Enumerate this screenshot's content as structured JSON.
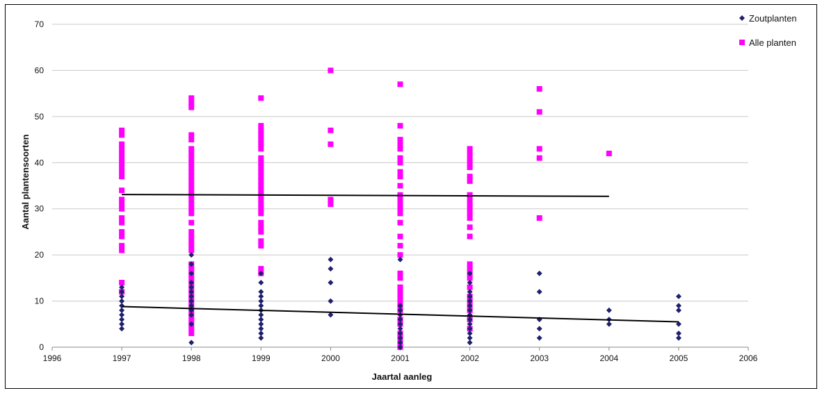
{
  "chart_data": {
    "type": "scatter",
    "xlabel": "Jaartal aanleg",
    "ylabel": "Aantal plantensoorten",
    "xlim": [
      1996,
      2006
    ],
    "ylim": [
      0,
      70
    ],
    "xticks": [
      1996,
      1997,
      1998,
      1999,
      2000,
      2001,
      2002,
      2003,
      2004,
      2005,
      2006
    ],
    "yticks": [
      0,
      10,
      20,
      30,
      40,
      50,
      60,
      70
    ],
    "grid": "horizontal",
    "legend_position": "top-right",
    "series": [
      {
        "name": "Zoutplanten",
        "color": "#1f1f6e",
        "marker": "diamond",
        "points": [
          [
            1997,
            4
          ],
          [
            1997,
            5
          ],
          [
            1997,
            6
          ],
          [
            1997,
            7
          ],
          [
            1997,
            8
          ],
          [
            1997,
            9
          ],
          [
            1997,
            10
          ],
          [
            1997,
            11
          ],
          [
            1997,
            12
          ],
          [
            1997,
            13
          ],
          [
            1998,
            1
          ],
          [
            1998,
            5
          ],
          [
            1998,
            7
          ],
          [
            1998,
            8
          ],
          [
            1998,
            9
          ],
          [
            1998,
            10
          ],
          [
            1998,
            11
          ],
          [
            1998,
            12
          ],
          [
            1998,
            13
          ],
          [
            1998,
            14
          ],
          [
            1998,
            16
          ],
          [
            1998,
            18
          ],
          [
            1998,
            20
          ],
          [
            1999,
            2
          ],
          [
            1999,
            3
          ],
          [
            1999,
            4
          ],
          [
            1999,
            5
          ],
          [
            1999,
            6
          ],
          [
            1999,
            7
          ],
          [
            1999,
            8
          ],
          [
            1999,
            9
          ],
          [
            1999,
            10
          ],
          [
            1999,
            11
          ],
          [
            1999,
            12
          ],
          [
            1999,
            14
          ],
          [
            1999,
            16
          ],
          [
            2000,
            7
          ],
          [
            2000,
            10
          ],
          [
            2000,
            14
          ],
          [
            2000,
            17
          ],
          [
            2000,
            19
          ],
          [
            2001,
            0
          ],
          [
            2001,
            1
          ],
          [
            2001,
            2
          ],
          [
            2001,
            3
          ],
          [
            2001,
            4
          ],
          [
            2001,
            5
          ],
          [
            2001,
            6
          ],
          [
            2001,
            7
          ],
          [
            2001,
            8
          ],
          [
            2001,
            9
          ],
          [
            2001,
            19
          ],
          [
            2002,
            1
          ],
          [
            2002,
            2
          ],
          [
            2002,
            3
          ],
          [
            2002,
            4
          ],
          [
            2002,
            5
          ],
          [
            2002,
            6
          ],
          [
            2002,
            7
          ],
          [
            2002,
            8
          ],
          [
            2002,
            9
          ],
          [
            2002,
            10
          ],
          [
            2002,
            11
          ],
          [
            2002,
            12
          ],
          [
            2002,
            14
          ],
          [
            2002,
            16
          ],
          [
            2003,
            2
          ],
          [
            2003,
            4
          ],
          [
            2003,
            6
          ],
          [
            2003,
            12
          ],
          [
            2003,
            16
          ],
          [
            2004,
            5
          ],
          [
            2004,
            6
          ],
          [
            2004,
            8
          ],
          [
            2005,
            2
          ],
          [
            2005,
            3
          ],
          [
            2005,
            5
          ],
          [
            2005,
            8
          ],
          [
            2005,
            9
          ],
          [
            2005,
            11
          ]
        ],
        "trendline": [
          [
            1997,
            8.8
          ],
          [
            2005,
            5.5
          ]
        ]
      },
      {
        "name": "Alle planten",
        "color": "#ff00ff",
        "marker": "square",
        "points": [
          [
            1997,
            12
          ],
          [
            1997,
            14
          ],
          [
            1997,
            21
          ],
          [
            1997,
            22
          ],
          [
            1997,
            24
          ],
          [
            1997,
            25
          ],
          [
            1997,
            27
          ],
          [
            1997,
            28
          ],
          [
            1997,
            30
          ],
          [
            1997,
            31
          ],
          [
            1997,
            32
          ],
          [
            1997,
            34
          ],
          [
            1997,
            37
          ],
          [
            1997,
            38
          ],
          [
            1997,
            39
          ],
          [
            1997,
            40
          ],
          [
            1997,
            41
          ],
          [
            1997,
            42
          ],
          [
            1997,
            43
          ],
          [
            1997,
            44
          ],
          [
            1997,
            46
          ],
          [
            1997,
            47
          ],
          [
            1998,
            3
          ],
          [
            1998,
            4
          ],
          [
            1998,
            5
          ],
          [
            1998,
            6
          ],
          [
            1998,
            7
          ],
          [
            1998,
            8
          ],
          [
            1998,
            9
          ],
          [
            1998,
            10
          ],
          [
            1998,
            11
          ],
          [
            1998,
            12
          ],
          [
            1998,
            13
          ],
          [
            1998,
            14
          ],
          [
            1998,
            15
          ],
          [
            1998,
            16
          ],
          [
            1998,
            17
          ],
          [
            1998,
            18
          ],
          [
            1998,
            21
          ],
          [
            1998,
            22
          ],
          [
            1998,
            23
          ],
          [
            1998,
            24
          ],
          [
            1998,
            25
          ],
          [
            1998,
            27
          ],
          [
            1998,
            29
          ],
          [
            1998,
            30
          ],
          [
            1998,
            31
          ],
          [
            1998,
            32
          ],
          [
            1998,
            33
          ],
          [
            1998,
            34
          ],
          [
            1998,
            35
          ],
          [
            1998,
            36
          ],
          [
            1998,
            37
          ],
          [
            1998,
            38
          ],
          [
            1998,
            39
          ],
          [
            1998,
            40
          ],
          [
            1998,
            41
          ],
          [
            1998,
            42
          ],
          [
            1998,
            43
          ],
          [
            1998,
            45
          ],
          [
            1998,
            46
          ],
          [
            1998,
            52
          ],
          [
            1998,
            53
          ],
          [
            1998,
            54
          ],
          [
            1999,
            16
          ],
          [
            1999,
            17
          ],
          [
            1999,
            22
          ],
          [
            1999,
            23
          ],
          [
            1999,
            25
          ],
          [
            1999,
            26
          ],
          [
            1999,
            27
          ],
          [
            1999,
            29
          ],
          [
            1999,
            30
          ],
          [
            1999,
            31
          ],
          [
            1999,
            32
          ],
          [
            1999,
            33
          ],
          [
            1999,
            34
          ],
          [
            1999,
            35
          ],
          [
            1999,
            36
          ],
          [
            1999,
            37
          ],
          [
            1999,
            38
          ],
          [
            1999,
            39
          ],
          [
            1999,
            40
          ],
          [
            1999,
            41
          ],
          [
            1999,
            43
          ],
          [
            1999,
            44
          ],
          [
            1999,
            45
          ],
          [
            1999,
            46
          ],
          [
            1999,
            47
          ],
          [
            1999,
            48
          ],
          [
            1999,
            54
          ],
          [
            2000,
            31
          ],
          [
            2000,
            32
          ],
          [
            2000,
            44
          ],
          [
            2000,
            47
          ],
          [
            2000,
            60
          ],
          [
            2001,
            0
          ],
          [
            2001,
            1
          ],
          [
            2001,
            2
          ],
          [
            2001,
            3
          ],
          [
            2001,
            5
          ],
          [
            2001,
            6
          ],
          [
            2001,
            8
          ],
          [
            2001,
            9
          ],
          [
            2001,
            10
          ],
          [
            2001,
            11
          ],
          [
            2001,
            12
          ],
          [
            2001,
            13
          ],
          [
            2001,
            15
          ],
          [
            2001,
            16
          ],
          [
            2001,
            20
          ],
          [
            2001,
            22
          ],
          [
            2001,
            24
          ],
          [
            2001,
            27
          ],
          [
            2001,
            29
          ],
          [
            2001,
            30
          ],
          [
            2001,
            31
          ],
          [
            2001,
            32
          ],
          [
            2001,
            33
          ],
          [
            2001,
            35
          ],
          [
            2001,
            37
          ],
          [
            2001,
            38
          ],
          [
            2001,
            40
          ],
          [
            2001,
            41
          ],
          [
            2001,
            43
          ],
          [
            2001,
            44
          ],
          [
            2001,
            45
          ],
          [
            2001,
            48
          ],
          [
            2001,
            57
          ],
          [
            2002,
            4
          ],
          [
            2002,
            6
          ],
          [
            2002,
            8
          ],
          [
            2002,
            9
          ],
          [
            2002,
            10
          ],
          [
            2002,
            11
          ],
          [
            2002,
            13
          ],
          [
            2002,
            15
          ],
          [
            2002,
            16
          ],
          [
            2002,
            17
          ],
          [
            2002,
            18
          ],
          [
            2002,
            24
          ],
          [
            2002,
            26
          ],
          [
            2002,
            28
          ],
          [
            2002,
            29
          ],
          [
            2002,
            30
          ],
          [
            2002,
            31
          ],
          [
            2002,
            32
          ],
          [
            2002,
            33
          ],
          [
            2002,
            36
          ],
          [
            2002,
            37
          ],
          [
            2002,
            39
          ],
          [
            2002,
            40
          ],
          [
            2002,
            41
          ],
          [
            2002,
            42
          ],
          [
            2002,
            43
          ],
          [
            2003,
            28
          ],
          [
            2003,
            41
          ],
          [
            2003,
            43
          ],
          [
            2003,
            51
          ],
          [
            2003,
            56
          ],
          [
            2004,
            42
          ]
        ],
        "trendline": [
          [
            1997,
            33.1
          ],
          [
            2004,
            32.7
          ]
        ]
      }
    ]
  }
}
